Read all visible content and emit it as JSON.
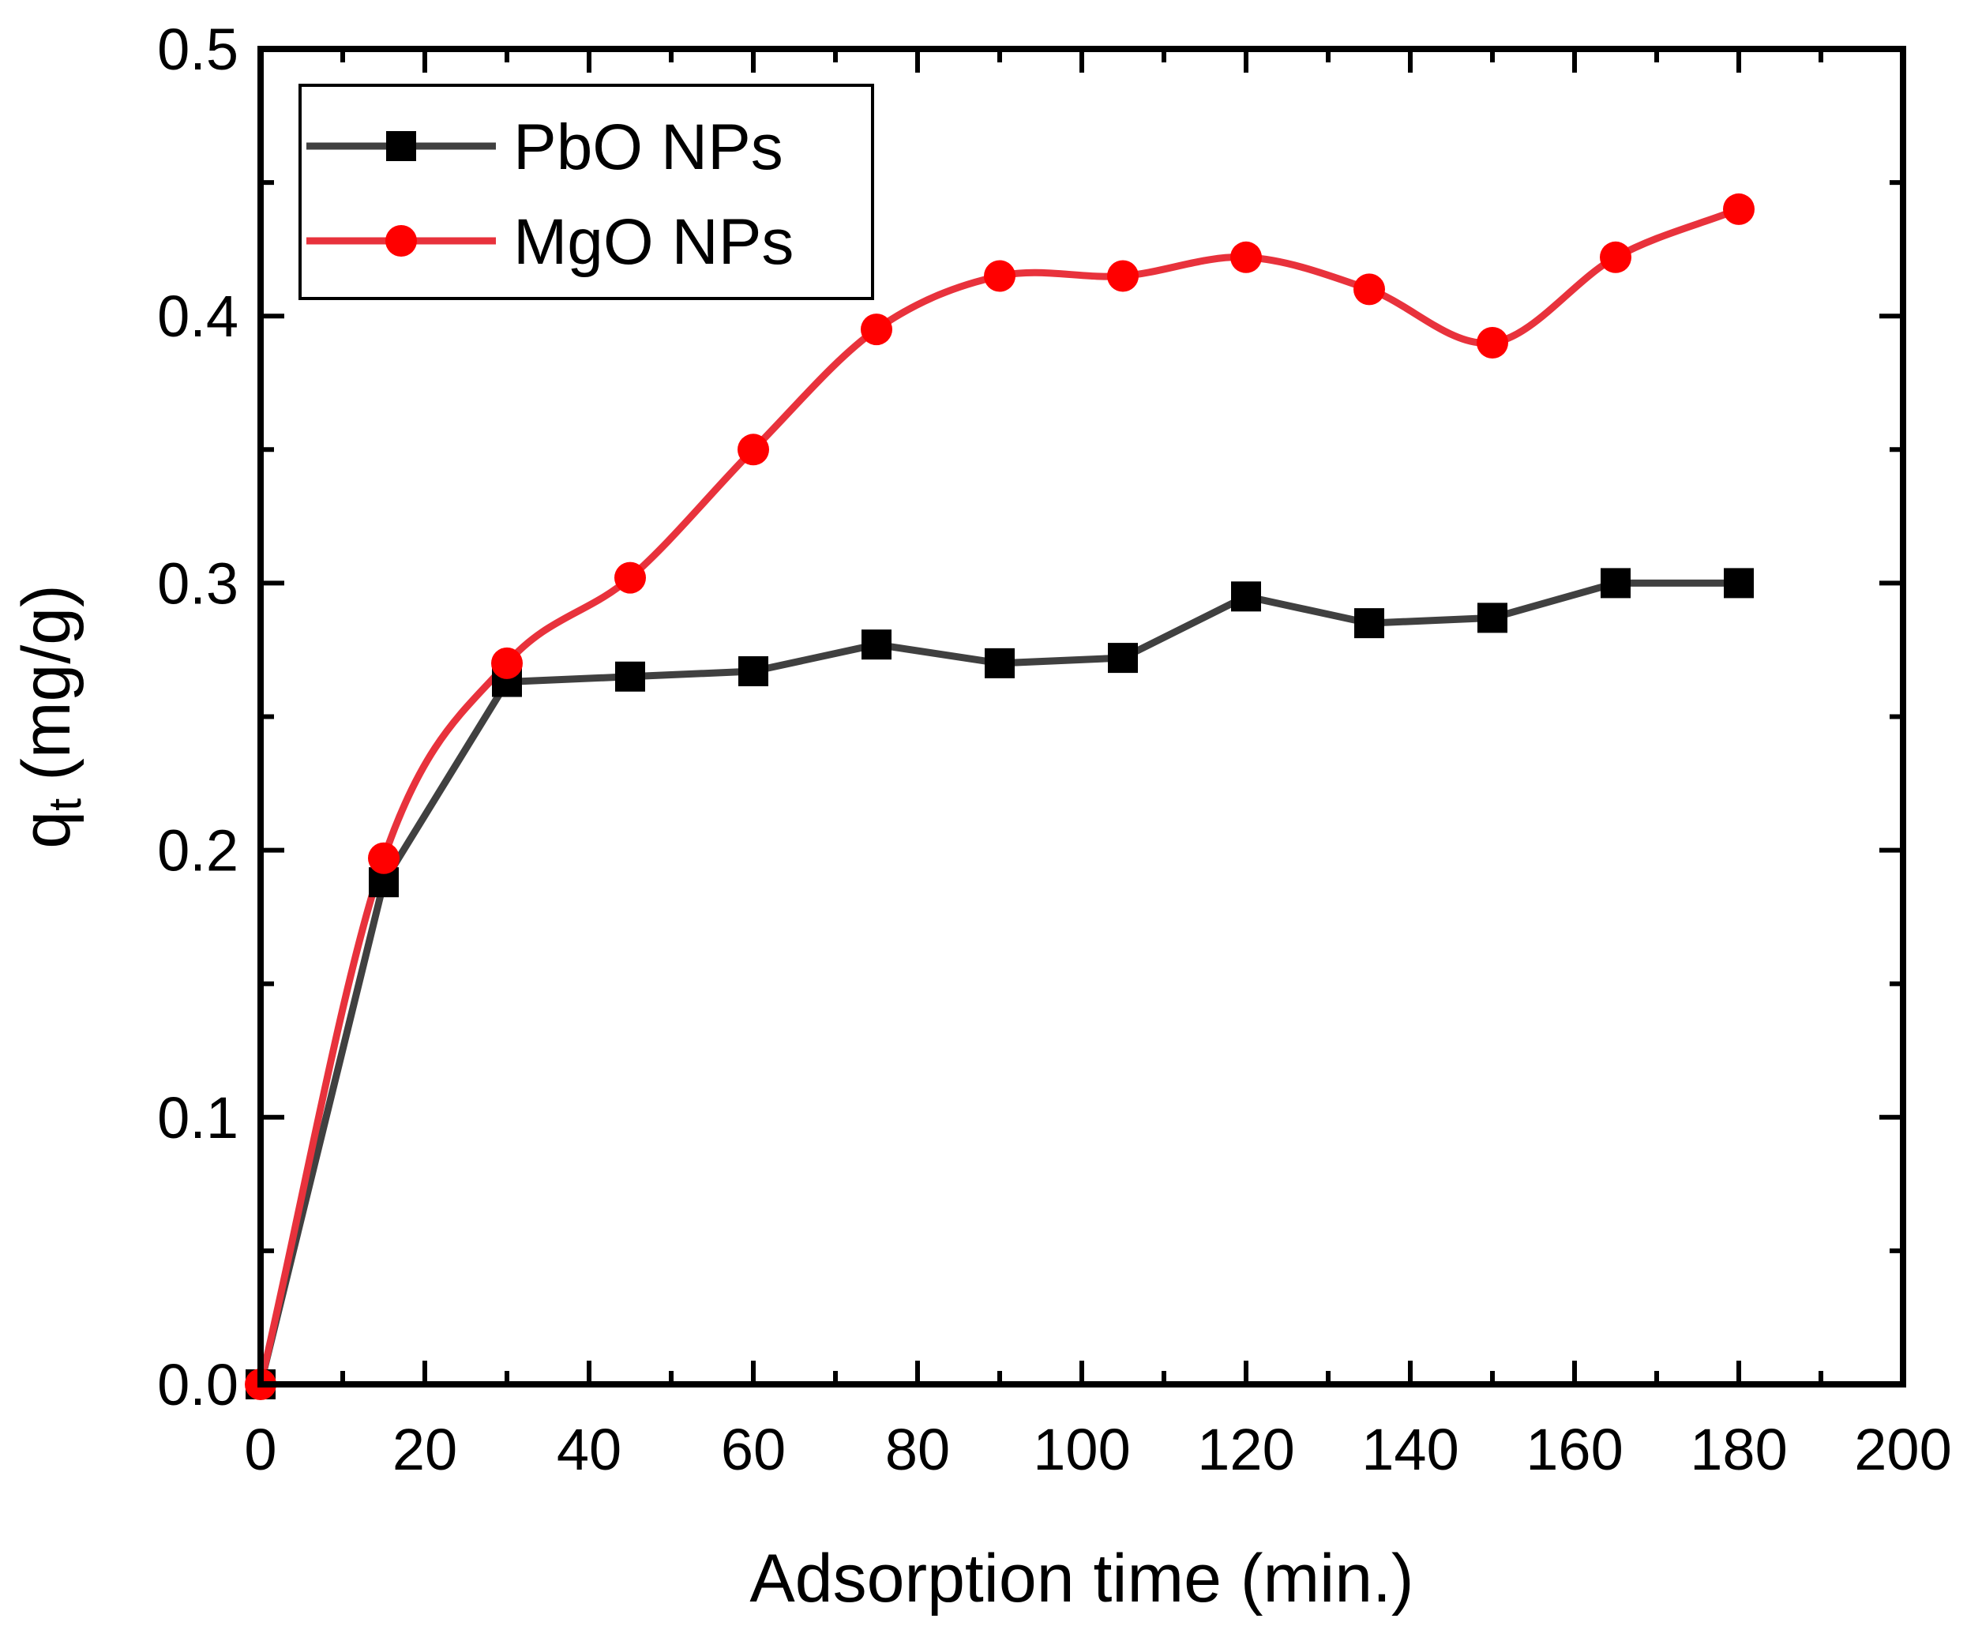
{
  "chart_data": {
    "type": "line",
    "title": "",
    "xlabel": "Adsorption time (min.)",
    "ylabel": {
      "main": "q",
      "sub": "t",
      "unit": "(mg/g)"
    },
    "xlim": [
      0,
      200
    ],
    "ylim": [
      0.0,
      0.5
    ],
    "x_ticks": [
      "0",
      "20",
      "40",
      "60",
      "80",
      "100",
      "120",
      "140",
      "160",
      "180",
      "200"
    ],
    "y_ticks": [
      "0.0",
      "0.1",
      "0.2",
      "0.3",
      "0.4",
      "0.5"
    ],
    "x_tick_values": [
      0,
      20,
      40,
      60,
      80,
      100,
      120,
      140,
      160,
      180,
      200
    ],
    "y_tick_values": [
      0.0,
      0.1,
      0.2,
      0.3,
      0.4,
      0.5
    ],
    "grid": false,
    "legend_position": "top-left",
    "series": [
      {
        "name": "PbO NPs",
        "color": "#404040",
        "marker": "square",
        "marker_color": "#000000",
        "curve": "straight",
        "x": [
          0,
          15,
          30,
          45,
          60,
          75,
          90,
          105,
          120,
          135,
          150,
          165,
          180
        ],
        "values": [
          0.0,
          0.188,
          0.263,
          0.265,
          0.267,
          0.277,
          0.27,
          0.272,
          0.295,
          0.285,
          0.287,
          0.3,
          0.3
        ]
      },
      {
        "name": "MgO NPs",
        "color": "#e8323c",
        "marker": "circle",
        "marker_color": "#ff0000",
        "curve": "smooth",
        "x": [
          0,
          15,
          30,
          45,
          60,
          75,
          90,
          105,
          120,
          135,
          150,
          165,
          180
        ],
        "values": [
          0.0,
          0.197,
          0.27,
          0.302,
          0.35,
          0.395,
          0.415,
          0.415,
          0.422,
          0.41,
          0.39,
          0.422,
          0.44
        ]
      }
    ]
  }
}
